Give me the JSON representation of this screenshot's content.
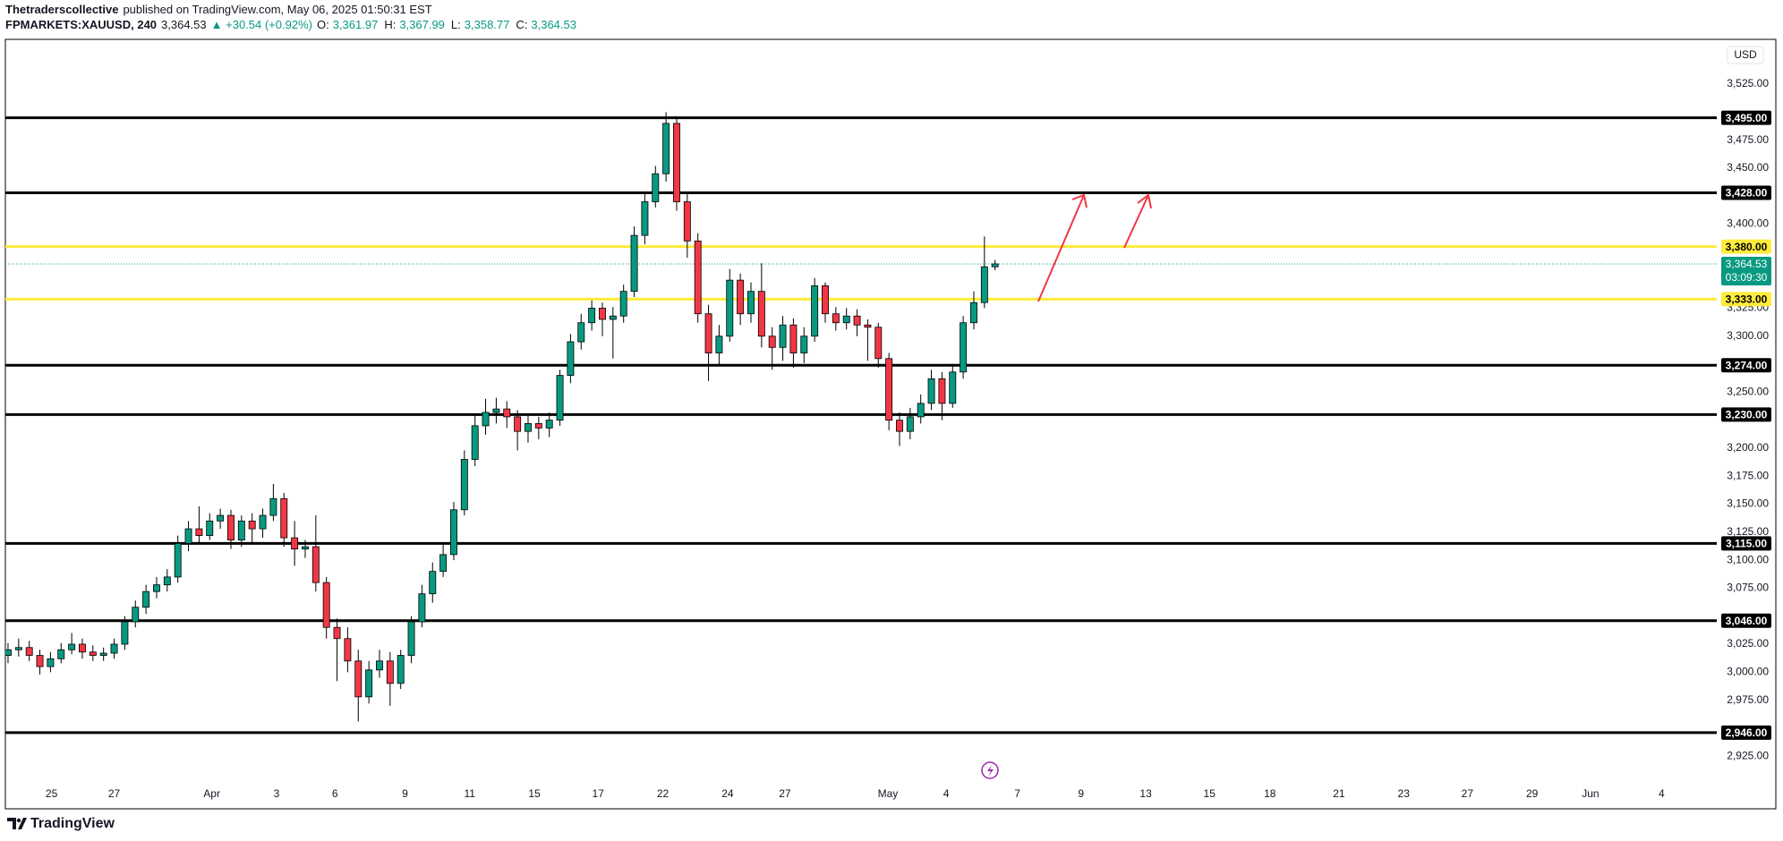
{
  "header": {
    "publisher": "Thetraderscollective",
    "published": "published on TradingView.com, May 06, 2025 01:50:31 EST"
  },
  "legend": {
    "symbol": "FPMARKETS:XAUUSD, 240",
    "last": "3,364.53",
    "change": "▲ +30.54 (+0.92%)",
    "ohlc": [
      {
        "label": "O:",
        "value": "3,361.97"
      },
      {
        "label": "H:",
        "value": "3,367.99"
      },
      {
        "label": "L:",
        "value": "3,358.77"
      },
      {
        "label": "C:",
        "value": "3,364.53"
      }
    ]
  },
  "chart_data": {
    "type": "candlestick",
    "currency": "USD",
    "up_color": "#089981",
    "down_color": "#f23645",
    "wick_color": "#000000",
    "open": [
      3015,
      3020,
      3022,
      3015,
      3005,
      3012,
      3020,
      3025,
      3018,
      3015,
      3017,
      3025,
      3045,
      3058,
      3072,
      3078,
      3085,
      3115,
      3128,
      3122,
      3135,
      3140,
      3118,
      3135,
      3128,
      3140,
      3155,
      3120,
      3110,
      3112,
      3080,
      3040,
      3030,
      3010,
      2978,
      3002,
      3010,
      2990,
      3015,
      3045,
      3070,
      3090,
      3105,
      3145,
      3190,
      3220,
      3232,
      3235,
      3228,
      3215,
      3222,
      3218,
      3225,
      3265,
      3295,
      3312,
      3325,
      3315,
      3318,
      3340,
      3390,
      3420,
      3445,
      3490,
      3420,
      3385,
      3320,
      3285,
      3300,
      3350,
      3320,
      3340,
      3300,
      3290,
      3310,
      3285,
      3300,
      3345,
      3320,
      3312,
      3318,
      3310,
      3308,
      3280,
      3225,
      3215,
      3228,
      3240,
      3262,
      3240,
      3268,
      3312,
      3330,
      3361.97
    ],
    "high": [
      3026,
      3030,
      3028,
      3020,
      3018,
      3026,
      3035,
      3030,
      3024,
      3022,
      3030,
      3050,
      3064,
      3078,
      3085,
      3092,
      3122,
      3135,
      3148,
      3142,
      3146,
      3145,
      3140,
      3142,
      3146,
      3168,
      3160,
      3135,
      3118,
      3140,
      3085,
      3048,
      3040,
      3020,
      3010,
      3020,
      3018,
      3020,
      3050,
      3078,
      3098,
      3114,
      3152,
      3198,
      3230,
      3244,
      3245,
      3242,
      3234,
      3230,
      3228,
      3232,
      3270,
      3302,
      3320,
      3332,
      3330,
      3326,
      3346,
      3398,
      3428,
      3452,
      3500,
      3496,
      3428,
      3392,
      3328,
      3310,
      3360,
      3356,
      3348,
      3365,
      3308,
      3318,
      3316,
      3308,
      3352,
      3348,
      3326,
      3325,
      3324,
      3315,
      3312,
      3285,
      3232,
      3236,
      3248,
      3270,
      3268,
      3275,
      3318,
      3340,
      3389,
      3367.99
    ],
    "low": [
      3008,
      3014,
      3010,
      2998,
      3000,
      3008,
      3016,
      3012,
      3010,
      3010,
      3012,
      3020,
      3040,
      3052,
      3066,
      3072,
      3080,
      3108,
      3115,
      3118,
      3128,
      3110,
      3112,
      3115,
      3120,
      3135,
      3112,
      3095,
      3102,
      3072,
      3030,
      2992,
      3000,
      2956,
      2972,
      2995,
      2970,
      2985,
      3008,
      3040,
      3062,
      3085,
      3100,
      3140,
      3184,
      3212,
      3222,
      3218,
      3198,
      3205,
      3208,
      3210,
      3220,
      3258,
      3288,
      3305,
      3300,
      3280,
      3312,
      3335,
      3382,
      3415,
      3438,
      3412,
      3370,
      3312,
      3260,
      3275,
      3295,
      3310,
      3312,
      3290,
      3270,
      3278,
      3272,
      3276,
      3295,
      3312,
      3305,
      3306,
      3300,
      3278,
      3272,
      3216,
      3202,
      3208,
      3222,
      3234,
      3225,
      3236,
      3262,
      3306,
      3325,
      3358.77
    ],
    "close": [
      3020,
      3022,
      3015,
      3005,
      3012,
      3020,
      3025,
      3018,
      3015,
      3017,
      3025,
      3045,
      3058,
      3072,
      3078,
      3085,
      3115,
      3128,
      3122,
      3135,
      3140,
      3118,
      3135,
      3128,
      3140,
      3155,
      3120,
      3110,
      3112,
      3080,
      3040,
      3030,
      3010,
      2978,
      3002,
      3010,
      2990,
      3015,
      3045,
      3070,
      3090,
      3105,
      3145,
      3190,
      3220,
      3232,
      3235,
      3228,
      3215,
      3222,
      3218,
      3225,
      3265,
      3295,
      3312,
      3325,
      3315,
      3318,
      3340,
      3390,
      3420,
      3445,
      3490,
      3420,
      3385,
      3320,
      3285,
      3300,
      3350,
      3320,
      3340,
      3300,
      3290,
      3310,
      3285,
      3300,
      3345,
      3320,
      3312,
      3318,
      3310,
      3308,
      3280,
      3225,
      3215,
      3228,
      3240,
      3262,
      3240,
      3268,
      3312,
      3330,
      3361.97,
      3364.53
    ],
    "xlim": [
      -0.25,
      161
    ],
    "xticks": [
      {
        "value": 4.1,
        "label": "25"
      },
      {
        "value": 10,
        "label": "27"
      },
      {
        "value": 19.2,
        "label": "Apr"
      },
      {
        "value": 25.3,
        "label": "3"
      },
      {
        "value": 30.8,
        "label": "6"
      },
      {
        "value": 37.4,
        "label": "9"
      },
      {
        "value": 43.5,
        "label": "11"
      },
      {
        "value": 49.6,
        "label": "15"
      },
      {
        "value": 55.6,
        "label": "17"
      },
      {
        "value": 61.7,
        "label": "22"
      },
      {
        "value": 67.8,
        "label": "24"
      },
      {
        "value": 73.2,
        "label": "27"
      },
      {
        "value": 82.9,
        "label": "May"
      },
      {
        "value": 88.4,
        "label": "4"
      },
      {
        "value": 95.1,
        "label": "7"
      },
      {
        "value": 101.1,
        "label": "9"
      },
      {
        "value": 107.2,
        "label": "13"
      },
      {
        "value": 113.2,
        "label": "15"
      },
      {
        "value": 118.9,
        "label": "18"
      },
      {
        "value": 125.4,
        "label": "21"
      },
      {
        "value": 131.5,
        "label": "23"
      },
      {
        "value": 137.5,
        "label": "27"
      },
      {
        "value": 143.6,
        "label": "29"
      },
      {
        "value": 149.1,
        "label": "Jun"
      },
      {
        "value": 155.8,
        "label": "4"
      }
    ],
    "ylim": [
      2902,
      3565
    ],
    "yticks": [
      {
        "value": 3525,
        "label": "3,525.00"
      },
      {
        "value": 3475,
        "label": "3,475.00"
      },
      {
        "value": 3450,
        "label": "3,450.00"
      },
      {
        "value": 3400,
        "label": "3,400.00"
      },
      {
        "value": 3325,
        "label": "3,325.00"
      },
      {
        "value": 3300,
        "label": "3,300.00"
      },
      {
        "value": 3250,
        "label": "3,250.00"
      },
      {
        "value": 3200,
        "label": "3,200.00"
      },
      {
        "value": 3175,
        "label": "3,175.00"
      },
      {
        "value": 3150,
        "label": "3,150.00"
      },
      {
        "value": 3125,
        "label": "3,125.00"
      },
      {
        "value": 3100,
        "label": "3,100.00"
      },
      {
        "value": 3075,
        "label": "3,075.00"
      },
      {
        "value": 3025,
        "label": "3,025.00"
      },
      {
        "value": 3000,
        "label": "3,000.00"
      },
      {
        "value": 2975,
        "label": "2,975.00"
      },
      {
        "value": 2925,
        "label": "2,925.00"
      }
    ],
    "levels": [
      {
        "value": 3495,
        "label": "3,495.00",
        "color": "#000000"
      },
      {
        "value": 3428,
        "label": "3,428.00",
        "color": "#000000"
      },
      {
        "value": 3380,
        "label": "3,380.00",
        "color": "#ffeb3b"
      },
      {
        "value": 3333,
        "label": "3,333.00",
        "color": "#ffeb3b"
      },
      {
        "value": 3274,
        "label": "3,274.00",
        "color": "#000000"
      },
      {
        "value": 3230,
        "label": "3,230.00",
        "color": "#000000"
      },
      {
        "value": 3115,
        "label": "3,115.00",
        "color": "#000000"
      },
      {
        "value": 3046,
        "label": "3,046.00",
        "color": "#000000"
      },
      {
        "value": 2946,
        "label": "2,946.00",
        "color": "#000000"
      }
    ],
    "last_price": {
      "label": "3,364.53",
      "countdown": "03:09:30",
      "color": "#089981"
    }
  },
  "footer": {
    "brand": "TradingView"
  }
}
